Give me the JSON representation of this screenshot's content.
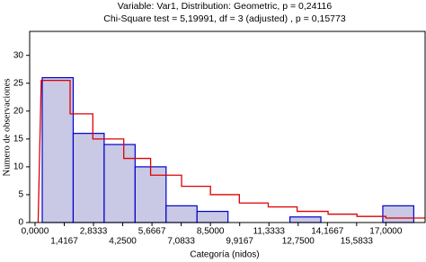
{
  "chart_data": {
    "type": "histogram",
    "title": "Variable: Var1, Distribution: Geometric, p = 0,24116",
    "subtitle": "Chi-Square test = 5,19991, df = 3 (adjusted) , p = 0,15773",
    "x_label": "Categoría (nidos)",
    "y_label": "Numero de observaciones",
    "bins": [
      0.35,
      1.85,
      3.35,
      4.85,
      6.35,
      7.85,
      9.35,
      10.85,
      12.35,
      13.85,
      15.35,
      16.85,
      18.35
    ],
    "values": [
      26,
      16,
      14,
      10,
      3,
      2,
      0,
      0,
      1,
      0,
      0,
      3
    ],
    "color": "#c9c9e6",
    "edge_color": "#0000cc",
    "curve": {
      "color": "#e00000",
      "x": [
        0.15,
        0.3,
        1.7,
        1.7,
        2.8,
        2.8,
        4.3,
        4.3,
        5.6,
        5.6,
        7.1,
        7.1,
        8.5,
        8.5,
        9.9,
        9.9,
        11.3,
        11.3,
        12.7,
        12.7,
        14.2,
        14.2,
        15.6,
        15.6,
        17,
        17,
        18.9
      ],
      "y": [
        0,
        25.5,
        25.5,
        19.5,
        19.5,
        15,
        15,
        11.5,
        11.5,
        8.5,
        8.5,
        6.5,
        6.5,
        5,
        5,
        3.5,
        3.5,
        2.8,
        2.8,
        2,
        2,
        1.5,
        1.5,
        1.1,
        1.1,
        0.8,
        0.8
      ]
    },
    "xlim": [
      -0.26,
      18.9
    ],
    "ylim": [
      0,
      34.3
    ],
    "xticks": [
      {
        "value": 0,
        "label": "0,0000"
      },
      {
        "value": 1.4167,
        "label": "1,4167"
      },
      {
        "value": 2.8333,
        "label": "2,8333"
      },
      {
        "value": 4.25,
        "label": "4,2500"
      },
      {
        "value": 5.6667,
        "label": "5,6667"
      },
      {
        "value": 7.0833,
        "label": "7,0833"
      },
      {
        "value": 8.5,
        "label": "8,5000"
      },
      {
        "value": 9.9167,
        "label": "9,9167"
      },
      {
        "value": 11.3333,
        "label": "11,3333"
      },
      {
        "value": 12.75,
        "label": "12,7500"
      },
      {
        "value": 14.1667,
        "label": "14,1667"
      },
      {
        "value": 15.5833,
        "label": "15,5833"
      },
      {
        "value": 17,
        "label": "17,0000"
      }
    ],
    "yticks": [
      0,
      5,
      10,
      15,
      20,
      25,
      30
    ]
  }
}
